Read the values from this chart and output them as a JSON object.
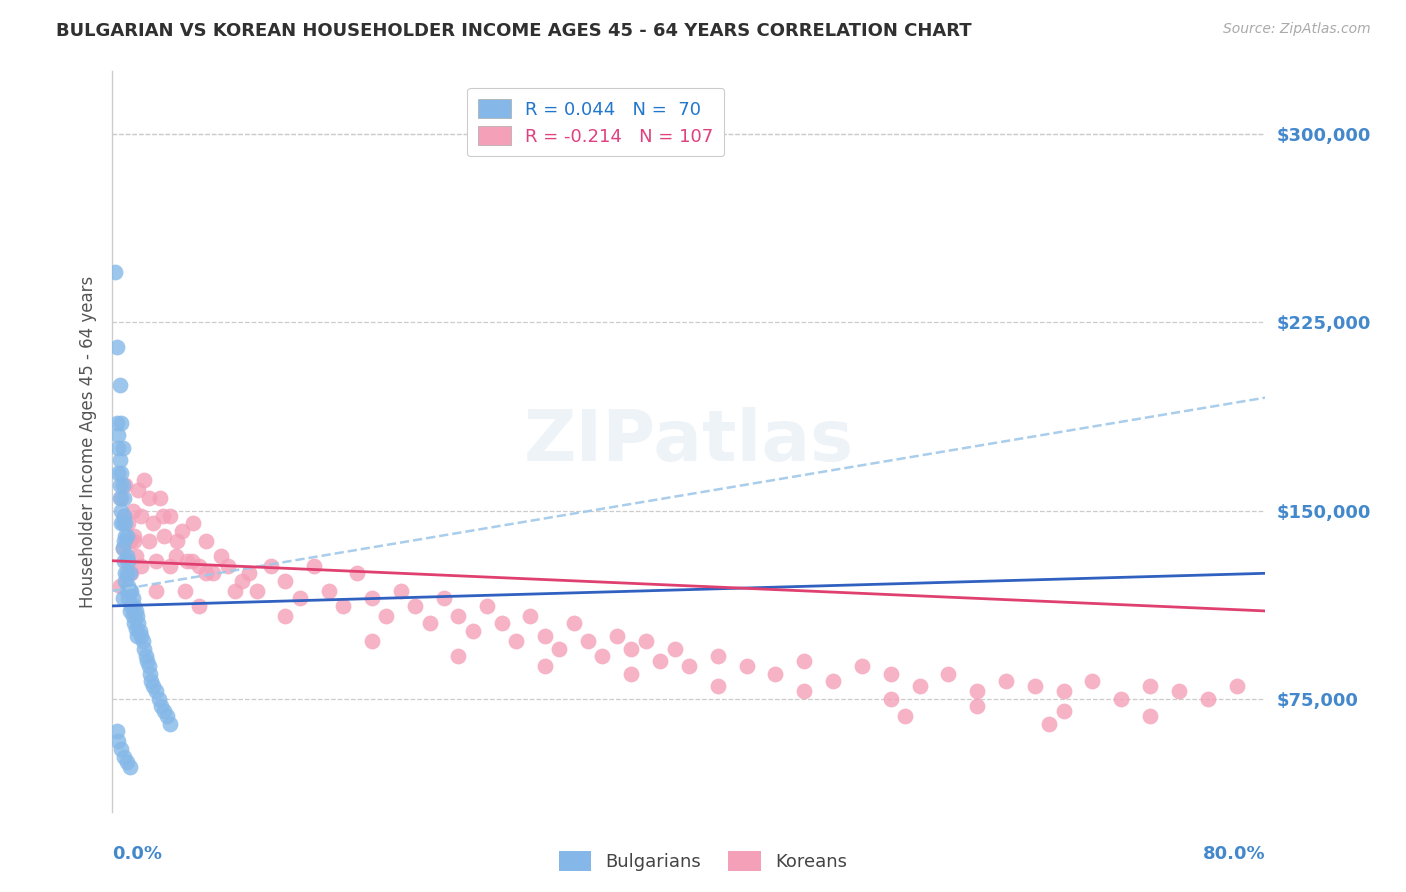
{
  "title": "BULGARIAN VS KOREAN HOUSEHOLDER INCOME AGES 45 - 64 YEARS CORRELATION CHART",
  "source": "Source: ZipAtlas.com",
  "ylabel": "Householder Income Ages 45 - 64 years",
  "xlim": [
    0.0,
    0.8
  ],
  "ylim": [
    30000,
    325000
  ],
  "yticks": [
    75000,
    150000,
    225000,
    300000
  ],
  "ytick_labels": [
    "$75,000",
    "$150,000",
    "$225,000",
    "$300,000"
  ],
  "bulgarian_color": "#85b8e8",
  "korean_color": "#f4a0b8",
  "bulgarian_line_color": "#3060c0",
  "korean_line_color": "#e04070",
  "bulgarian_dash_color": "#a0c8e8",
  "background_color": "#ffffff",
  "grid_color": "#cccccc",
  "title_color": "#303030",
  "watermark": "ZIPatlas",
  "R_bulgarian": 0.044,
  "N_bulgarian": 70,
  "R_korean": -0.214,
  "N_korean": 107,
  "bulgarian_x": [
    0.002,
    0.003,
    0.003,
    0.004,
    0.004,
    0.004,
    0.005,
    0.005,
    0.005,
    0.005,
    0.006,
    0.006,
    0.006,
    0.006,
    0.007,
    0.007,
    0.007,
    0.007,
    0.008,
    0.008,
    0.008,
    0.008,
    0.009,
    0.009,
    0.009,
    0.01,
    0.01,
    0.01,
    0.01,
    0.011,
    0.011,
    0.011,
    0.012,
    0.012,
    0.012,
    0.013,
    0.013,
    0.014,
    0.014,
    0.015,
    0.015,
    0.016,
    0.016,
    0.017,
    0.017,
    0.018,
    0.019,
    0.02,
    0.021,
    0.022,
    0.023,
    0.024,
    0.025,
    0.026,
    0.027,
    0.028,
    0.03,
    0.032,
    0.034,
    0.036,
    0.038,
    0.04,
    0.003,
    0.004,
    0.006,
    0.008,
    0.01,
    0.012,
    0.007,
    0.009
  ],
  "bulgarian_y": [
    245000,
    215000,
    185000,
    175000,
    165000,
    180000,
    200000,
    170000,
    160000,
    155000,
    185000,
    165000,
    150000,
    145000,
    175000,
    160000,
    145000,
    135000,
    155000,
    148000,
    138000,
    130000,
    145000,
    140000,
    125000,
    140000,
    132000,
    125000,
    118000,
    130000,
    120000,
    115000,
    125000,
    118000,
    110000,
    118000,
    112000,
    115000,
    108000,
    112000,
    105000,
    110000,
    103000,
    108000,
    100000,
    105000,
    102000,
    100000,
    98000,
    95000,
    92000,
    90000,
    88000,
    85000,
    82000,
    80000,
    78000,
    75000,
    72000,
    70000,
    68000,
    65000,
    62000,
    58000,
    55000,
    52000,
    50000,
    48000,
    115000,
    122000
  ],
  "korean_x": [
    0.005,
    0.006,
    0.007,
    0.008,
    0.009,
    0.01,
    0.011,
    0.012,
    0.013,
    0.014,
    0.015,
    0.016,
    0.018,
    0.02,
    0.022,
    0.025,
    0.028,
    0.03,
    0.033,
    0.036,
    0.04,
    0.044,
    0.048,
    0.052,
    0.056,
    0.06,
    0.065,
    0.07,
    0.075,
    0.08,
    0.085,
    0.09,
    0.095,
    0.1,
    0.11,
    0.12,
    0.13,
    0.14,
    0.15,
    0.16,
    0.17,
    0.18,
    0.19,
    0.2,
    0.21,
    0.22,
    0.23,
    0.24,
    0.25,
    0.26,
    0.27,
    0.28,
    0.29,
    0.3,
    0.31,
    0.32,
    0.33,
    0.34,
    0.35,
    0.36,
    0.37,
    0.38,
    0.39,
    0.4,
    0.42,
    0.44,
    0.46,
    0.48,
    0.5,
    0.52,
    0.54,
    0.56,
    0.58,
    0.6,
    0.62,
    0.64,
    0.66,
    0.68,
    0.7,
    0.72,
    0.74,
    0.76,
    0.78,
    0.025,
    0.035,
    0.045,
    0.055,
    0.065,
    0.015,
    0.02,
    0.03,
    0.04,
    0.05,
    0.06,
    0.12,
    0.18,
    0.24,
    0.3,
    0.36,
    0.42,
    0.48,
    0.54,
    0.6,
    0.66,
    0.72,
    0.55,
    0.65
  ],
  "korean_y": [
    120000,
    155000,
    135000,
    148000,
    160000,
    130000,
    145000,
    138000,
    125000,
    150000,
    140000,
    132000,
    158000,
    148000,
    162000,
    138000,
    145000,
    130000,
    155000,
    140000,
    148000,
    132000,
    142000,
    130000,
    145000,
    128000,
    138000,
    125000,
    132000,
    128000,
    118000,
    122000,
    125000,
    118000,
    128000,
    122000,
    115000,
    128000,
    118000,
    112000,
    125000,
    115000,
    108000,
    118000,
    112000,
    105000,
    115000,
    108000,
    102000,
    112000,
    105000,
    98000,
    108000,
    100000,
    95000,
    105000,
    98000,
    92000,
    100000,
    95000,
    98000,
    90000,
    95000,
    88000,
    92000,
    88000,
    85000,
    90000,
    82000,
    88000,
    85000,
    80000,
    85000,
    78000,
    82000,
    80000,
    78000,
    82000,
    75000,
    80000,
    78000,
    75000,
    80000,
    155000,
    148000,
    138000,
    130000,
    125000,
    138000,
    128000,
    118000,
    128000,
    118000,
    112000,
    108000,
    98000,
    92000,
    88000,
    85000,
    80000,
    78000,
    75000,
    72000,
    70000,
    68000,
    68000,
    65000
  ]
}
